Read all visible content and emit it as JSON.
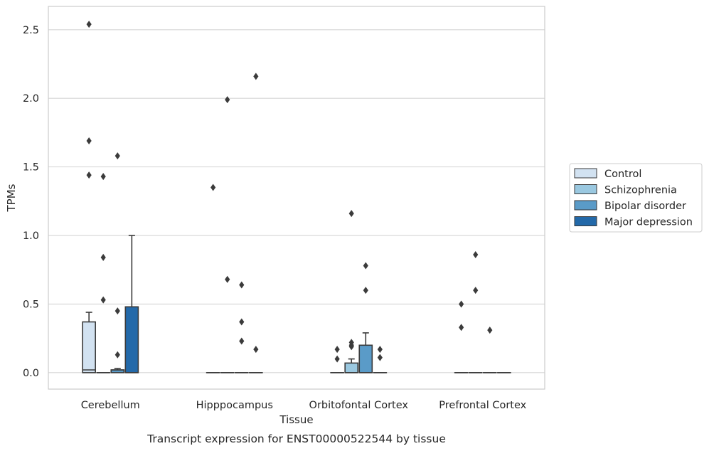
{
  "chart_data": {
    "type": "box",
    "caption": "Transcript expression for ENST00000522544 by tissue",
    "xlabel": "Tissue",
    "ylabel": "TPMs",
    "ylim": [
      -0.12,
      2.67
    ],
    "yticks": [
      "0.0",
      "0.5",
      "1.0",
      "1.5",
      "2.0",
      "2.5"
    ],
    "grid": true,
    "legend_position": "right",
    "categories": [
      "Cerebellum",
      "Hipppocampus",
      "Orbitofontal Cortex",
      "Prefrontal Cortex"
    ],
    "series": [
      {
        "name": "Control",
        "color": "#d2e2f1",
        "boxes": [
          {
            "q1": 0.0,
            "median": 0.02,
            "q3": 0.37,
            "whislo": 0.0,
            "whishi": 0.44,
            "fliers": [
              2.54,
              1.69,
              1.44
            ]
          },
          {
            "q1": 0.0,
            "median": 0.0,
            "q3": 0.0,
            "whislo": 0.0,
            "whishi": 0.0,
            "fliers": [
              1.35
            ]
          },
          {
            "q1": 0.0,
            "median": 0.0,
            "q3": 0.0,
            "whislo": 0.0,
            "whishi": 0.0,
            "fliers": [
              0.17,
              0.1
            ]
          },
          {
            "q1": 0.0,
            "median": 0.0,
            "q3": 0.0,
            "whislo": 0.0,
            "whishi": 0.0,
            "fliers": [
              0.5,
              0.33
            ]
          }
        ]
      },
      {
        "name": "Schizophrenia",
        "color": "#9ac8e0",
        "boxes": [
          {
            "q1": 0.0,
            "median": 0.0,
            "q3": 0.0,
            "whislo": 0.0,
            "whishi": 0.0,
            "fliers": [
              1.43,
              0.84,
              0.53
            ]
          },
          {
            "q1": 0.0,
            "median": 0.0,
            "q3": 0.0,
            "whislo": 0.0,
            "whishi": 0.0,
            "fliers": [
              1.99,
              0.68
            ]
          },
          {
            "q1": 0.0,
            "median": 0.0,
            "q3": 0.07,
            "whislo": 0.0,
            "whishi": 0.1,
            "fliers": [
              1.16,
              0.22,
              0.2,
              0.19
            ]
          },
          {
            "q1": 0.0,
            "median": 0.0,
            "q3": 0.0,
            "whislo": 0.0,
            "whishi": 0.0,
            "fliers": [
              0.86,
              0.6
            ]
          }
        ]
      },
      {
        "name": "Bipolar disorder",
        "color": "#5a9bc8",
        "boxes": [
          {
            "q1": 0.0,
            "median": 0.02,
            "q3": 0.02,
            "whislo": 0.0,
            "whishi": 0.03,
            "fliers": [
              1.58,
              0.45,
              0.13
            ]
          },
          {
            "q1": 0.0,
            "median": 0.0,
            "q3": 0.0,
            "whislo": 0.0,
            "whishi": 0.0,
            "fliers": [
              0.64,
              0.37,
              0.23
            ]
          },
          {
            "q1": 0.0,
            "median": 0.0,
            "q3": 0.2,
            "whislo": 0.0,
            "whishi": 0.29,
            "fliers": [
              0.78,
              0.6
            ]
          },
          {
            "q1": 0.0,
            "median": 0.0,
            "q3": 0.0,
            "whislo": 0.0,
            "whishi": 0.0,
            "fliers": [
              0.31
            ]
          }
        ]
      },
      {
        "name": "Major depression",
        "color": "#2369a9",
        "boxes": [
          {
            "q1": 0.0,
            "median": 0.0,
            "q3": 0.48,
            "whislo": 0.0,
            "whishi": 1.0,
            "fliers": []
          },
          {
            "q1": 0.0,
            "median": 0.0,
            "q3": 0.0,
            "whislo": 0.0,
            "whishi": 0.0,
            "fliers": [
              2.16,
              0.17
            ]
          },
          {
            "q1": 0.0,
            "median": 0.0,
            "q3": 0.0,
            "whislo": 0.0,
            "whishi": 0.0,
            "fliers": [
              0.17,
              0.11
            ]
          },
          {
            "q1": 0.0,
            "median": 0.0,
            "q3": 0.0,
            "whislo": 0.0,
            "whishi": 0.0,
            "fliers": []
          }
        ]
      }
    ]
  }
}
